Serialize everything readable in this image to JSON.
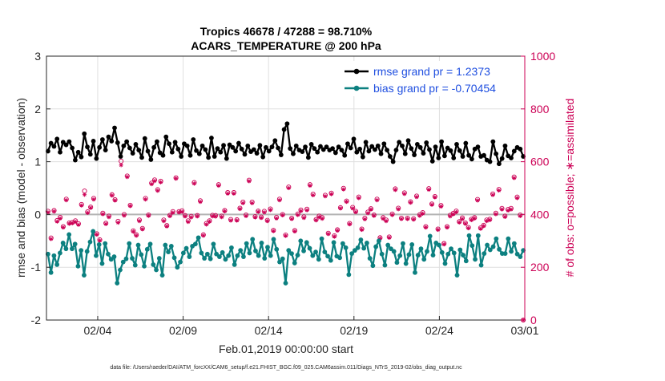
{
  "chart_data": {
    "type": "line",
    "title_line1": "Tropics 46678 / 47288 = 98.710%",
    "title_line2": "ACARS_TEMPERATURE @ 200 hPa",
    "xlabel": "Feb.01,2019 00:00:00 start",
    "ylabel_left": "rmse and bias (model - observation)",
    "ylabel_right": "# of obs: o=possible; ∗=assimilated",
    "footer": "data file: /Users/raeder/DAI/ATM_forcXX/CAM6_setup/f.e21.FHIST_BGC.f09_025.CAM6assim.011/Diags_NTrS_2019-02/obs_diag_output.nc",
    "xlim": [
      0,
      28
    ],
    "ylim_left": [
      -2,
      3
    ],
    "ylim_right": [
      0,
      1000
    ],
    "x_ticks": [
      3,
      8,
      13,
      18,
      23,
      28
    ],
    "x_tick_labels": [
      "02/04",
      "02/09",
      "02/14",
      "02/19",
      "02/24",
      "03/01"
    ],
    "y_ticks_left": [
      -2,
      -1,
      0,
      1,
      2,
      3
    ],
    "y_tick_labels_left": [
      "-2",
      "-1",
      "0",
      "1",
      "2",
      "3"
    ],
    "y_ticks_right": [
      0,
      200,
      400,
      600,
      800,
      1000
    ],
    "y_tick_labels_right": [
      "0",
      "200",
      "400",
      "600",
      "800",
      "1000"
    ],
    "grid": true,
    "legend_position": "top-right",
    "legend": [
      {
        "label": "rmse grand pr = 1.2373",
        "color": "#000000"
      },
      {
        "label": "bias grand pr = -0.70454",
        "color": "#007f7f"
      }
    ],
    "colors": {
      "rmse": "#000000",
      "bias": "#0c8080",
      "obs": "#cc0055",
      "zero_line": "#b3b3b3",
      "right_axis": "#cc0055",
      "legend_text": "#1f4fe0"
    },
    "series": [
      {
        "name": "rmse",
        "values": [
          1.2,
          1.35,
          1.29,
          1.43,
          1.18,
          1.37,
          1.32,
          1.38,
          1.26,
          1.03,
          1.18,
          1.09,
          1.53,
          1.28,
          1.14,
          1.39,
          1.06,
          1.27,
          1.42,
          1.22,
          1.47,
          1.39,
          1.64,
          1.36,
          1.1,
          1.3,
          1.38,
          1.26,
          1.16,
          1.33,
          1.22,
          1.08,
          1.44,
          1.2,
          1.04,
          1.27,
          1.38,
          1.17,
          1.12,
          1.47,
          1.34,
          1.18,
          1.37,
          1.24,
          1.1,
          1.34,
          1.3,
          1.12,
          1.42,
          1.21,
          1.15,
          1.3,
          1.23,
          1.08,
          1.45,
          1.1,
          1.25,
          1.18,
          1.31,
          1.06,
          1.32,
          1.27,
          1.2,
          1.35,
          1.24,
          1.14,
          1.3,
          1.19,
          1.23,
          1.16,
          1.31,
          1.09,
          1.27,
          1.2,
          1.28,
          1.4,
          1.26,
          1.13,
          1.61,
          1.72,
          1.25,
          1.15,
          1.3,
          1.22,
          1.19,
          1.28,
          1.08,
          1.33,
          1.25,
          1.18,
          1.29,
          1.23,
          1.28,
          1.22,
          1.25,
          1.17,
          1.28,
          1.22,
          1.12,
          1.34,
          1.26,
          1.43,
          1.18,
          1.24,
          1.09,
          1.37,
          1.2,
          1.29,
          1.23,
          1.3,
          1.15,
          1.34,
          1.22,
          1.1,
          1.0,
          1.22,
          1.37,
          1.3,
          1.15,
          1.4,
          1.25,
          1.13,
          1.33,
          1.27,
          1.16,
          1.36,
          1.23,
          1.01,
          1.28,
          1.07,
          1.38,
          1.11,
          1.26,
          1.21,
          1.07,
          1.33,
          1.21,
          1.1,
          1.35,
          1.12,
          1.05,
          1.24,
          1.28,
          1.1,
          1.12,
          1.03,
          1.0,
          1.38,
          1.15,
          0.96,
          1.06,
          1.3,
          1.11,
          1.07,
          1.2,
          1.27,
          1.24,
          1.1
        ]
      },
      {
        "name": "bias",
        "values": [
          -0.75,
          -1.1,
          -0.78,
          -0.95,
          -0.73,
          -0.54,
          -0.65,
          -0.38,
          -0.65,
          -0.56,
          -0.98,
          -0.68,
          -1.15,
          -0.7,
          -0.52,
          -0.32,
          -0.78,
          -0.57,
          -0.93,
          -0.55,
          -0.75,
          -0.85,
          -0.8,
          -1.3,
          -1.05,
          -0.9,
          -0.84,
          -0.55,
          -0.83,
          -0.96,
          -0.58,
          -0.76,
          -0.98,
          -0.66,
          -0.56,
          -0.95,
          -1.05,
          -0.83,
          -1.15,
          -0.58,
          -0.71,
          -0.6,
          -0.82,
          -1.0,
          -0.9,
          -0.73,
          -0.64,
          -0.8,
          -0.6,
          -0.56,
          -0.44,
          -0.73,
          -0.83,
          -0.75,
          -0.84,
          -0.56,
          -0.75,
          -0.8,
          -0.72,
          -0.85,
          -0.78,
          -0.63,
          -0.95,
          -0.78,
          -0.68,
          -0.8,
          -0.55,
          -0.73,
          -0.47,
          -0.69,
          -0.78,
          -0.54,
          -0.83,
          -0.62,
          -0.78,
          -0.47,
          -0.66,
          -0.9,
          -0.84,
          -1.3,
          -0.68,
          -0.74,
          -0.92,
          -0.77,
          -0.5,
          -0.69,
          -0.53,
          -0.64,
          -0.78,
          -0.71,
          -0.85,
          -0.46,
          -0.71,
          -0.79,
          -0.87,
          -0.53,
          -0.79,
          -0.82,
          -0.55,
          -0.63,
          -1.14,
          -0.74,
          -0.68,
          -0.63,
          -0.48,
          -0.64,
          -0.54,
          -0.83,
          -0.97,
          -0.61,
          -0.5,
          -0.75,
          -0.96,
          -0.58,
          -0.65,
          -0.7,
          -0.91,
          -0.78,
          -0.55,
          -0.93,
          -0.76,
          -0.57,
          -1.1,
          -0.77,
          -0.65,
          -0.85,
          -0.7,
          -0.41,
          -0.77,
          -0.54,
          -0.58,
          -0.72,
          -0.93,
          -0.75,
          -0.65,
          -0.73,
          -1.15,
          -0.67,
          -0.77,
          -0.88,
          -0.4,
          -0.59,
          -0.85,
          -0.4,
          -0.96,
          -0.74,
          -0.58,
          -0.67,
          -0.61,
          -0.46,
          -0.66,
          -0.74,
          -0.74,
          -0.46,
          -0.7,
          -0.55,
          -0.75,
          -0.8,
          -0.68
        ]
      },
      {
        "name": "obs_possible",
        "values": [
          412,
          311,
          415,
          377,
          389,
          354,
          458,
          368,
          370,
          376,
          365,
          438,
          489,
          410,
          428,
          461,
          327,
          304,
          405,
          367,
          394,
          475,
          456,
          374,
          602,
          400,
          546,
          435,
          338,
          323,
          379,
          347,
          461,
          398,
          519,
          531,
          494,
          526,
          379,
          358,
          397,
          411,
          539,
          411,
          414,
          396,
          376,
          393,
          521,
          396,
          452,
          323,
          366,
          376,
          397,
          396,
          513,
          394,
          415,
          483,
          381,
          483,
          380,
          424,
          447,
          398,
          530,
          447,
          392,
          413,
          390,
          412,
          378,
          421,
          340,
          389,
          458,
          400,
          322,
          504,
          386,
          339,
          402,
          417,
          391,
          420,
          513,
          477,
          381,
          394,
          388,
          473,
          329,
          481,
          319,
          342,
          426,
          499,
          451,
          366,
          427,
          412,
          466,
          345,
          386,
          409,
          422,
          398,
          458,
          312,
          388,
          379,
          315,
          402,
          497,
          424,
          386,
          482,
          386,
          448,
          384,
          470,
          399,
          407,
          354,
          498,
          440,
          468,
          345,
          434,
          290,
          354,
          397,
          404,
          413,
          373,
          387,
          368,
          351,
          382,
          388,
          457,
          349,
          359,
          379,
          382,
          478,
          405,
          495,
          423,
          394,
          419,
          423,
          542,
          466,
          398,
          0
        ]
      },
      {
        "name": "obs_assimilated",
        "values": [
          408,
          307,
          411,
          373,
          385,
          351,
          454,
          365,
          367,
          372,
          361,
          434,
          475,
          406,
          425,
          457,
          324,
          301,
          401,
          364,
          390,
          472,
          453,
          369,
          587,
          396,
          542,
          432,
          335,
          320,
          375,
          344,
          457,
          395,
          515,
          527,
          490,
          522,
          375,
          355,
          394,
          407,
          536,
          408,
          410,
          393,
          372,
          389,
          517,
          393,
          448,
          320,
          362,
          373,
          393,
          392,
          509,
          390,
          412,
          479,
          377,
          479,
          377,
          421,
          443,
          394,
          526,
          443,
          389,
          410,
          387,
          408,
          375,
          417,
          337,
          385,
          454,
          397,
          319,
          500,
          383,
          336,
          398,
          413,
          387,
          416,
          509,
          473,
          378,
          390,
          384,
          469,
          326,
          477,
          316,
          339,
          423,
          495,
          448,
          363,
          423,
          409,
          462,
          342,
          382,
          405,
          419,
          395,
          454,
          309,
          384,
          375,
          312,
          398,
          493,
          420,
          383,
          478,
          383,
          445,
          381,
          466,
          395,
          403,
          351,
          494,
          437,
          465,
          342,
          430,
          287,
          351,
          393,
          401,
          409,
          370,
          383,
          365,
          348,
          379,
          385,
          453,
          346,
          356,
          375,
          379,
          474,
          401,
          491,
          419,
          391,
          415,
          419,
          538,
          462,
          394,
          0
        ]
      }
    ]
  }
}
